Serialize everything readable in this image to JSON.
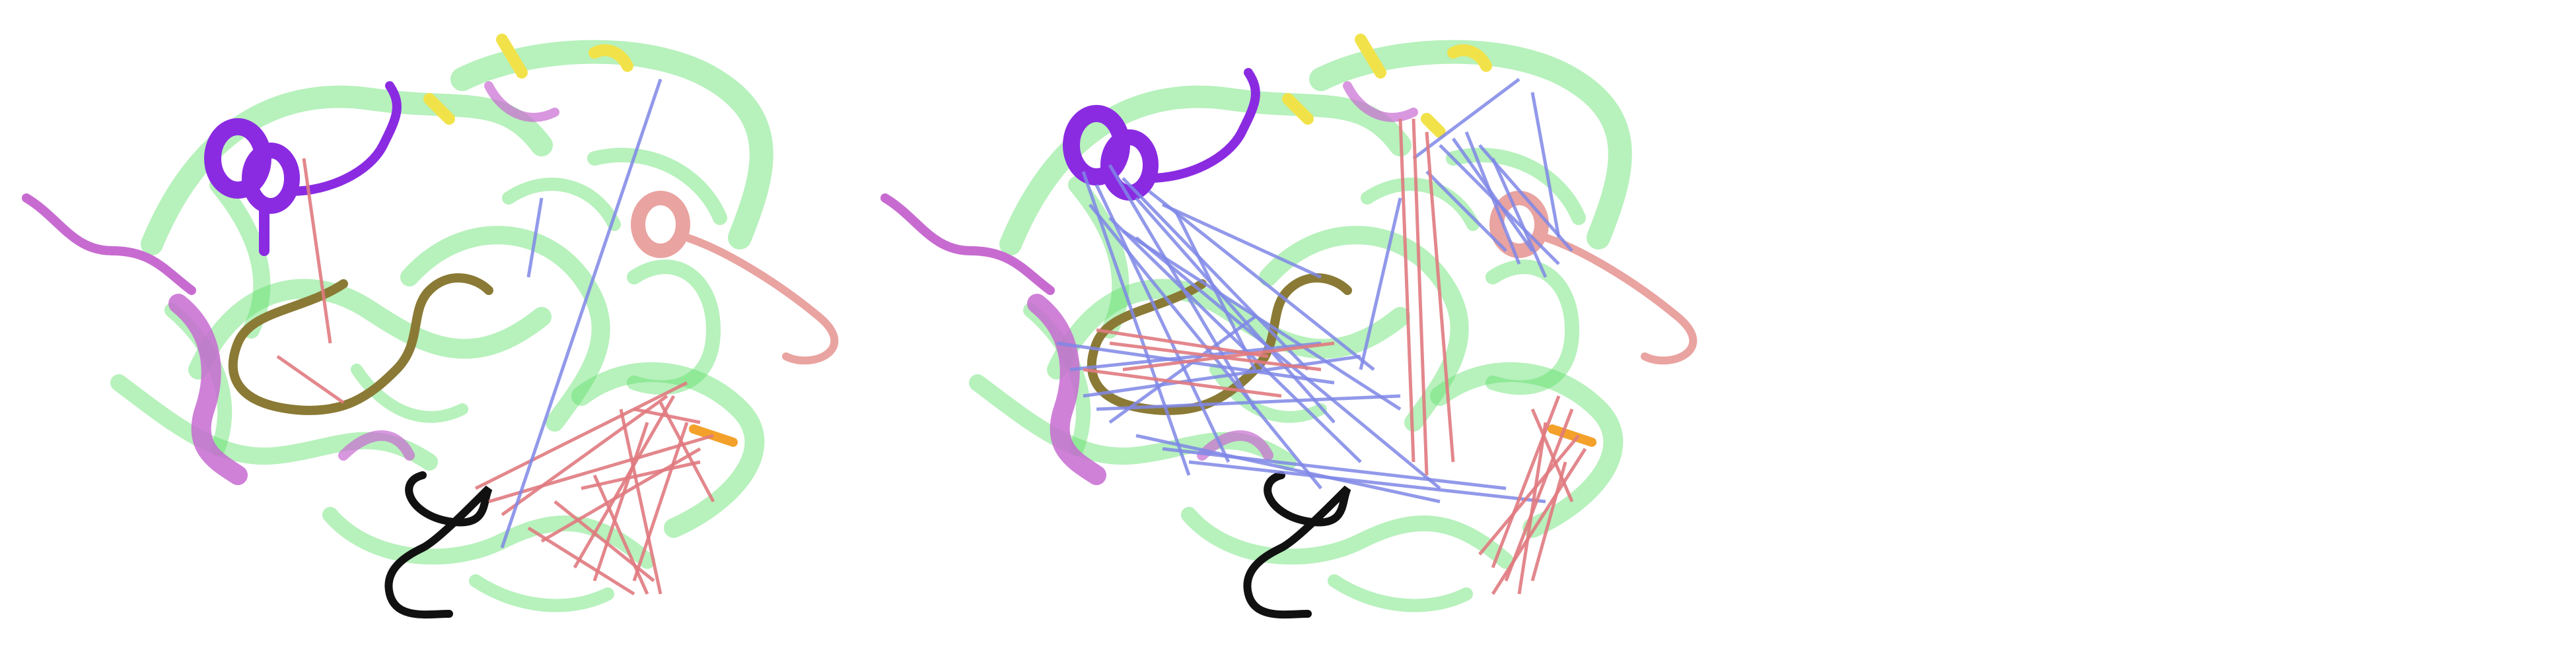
{
  "figure": {
    "background": "#ffffff",
    "panels": [
      {
        "id": "left",
        "contact_lines": "sparse"
      },
      {
        "id": "right",
        "contact_lines": "dense"
      },
      {
        "id": "empty"
      }
    ]
  },
  "colors": {
    "backbone_green": "#5fe06a",
    "helix_purple": "#8a2be2",
    "helix_magenta": "#c76bd1",
    "loop_olive": "#8a7a35",
    "loop_black": "#111111",
    "helix_salmon": "#e9a3a0",
    "strand_yellow": "#f2e24a",
    "strand_orange": "#f3a12a",
    "contact_blue": "#7f87e6",
    "contact_red": "#e07a80"
  }
}
